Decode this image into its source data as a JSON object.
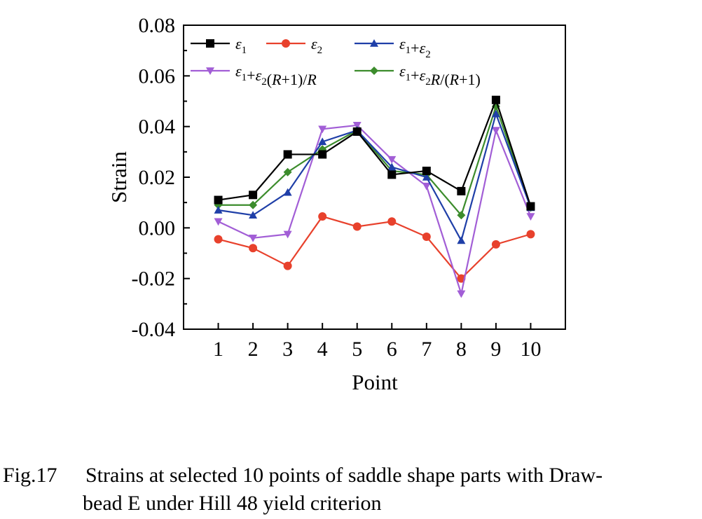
{
  "chart_data": {
    "type": "line",
    "x": [
      1,
      2,
      3,
      4,
      5,
      6,
      7,
      8,
      9,
      10
    ],
    "xlabel": "Point",
    "ylabel": "Strain",
    "xlim": [
      0,
      11
    ],
    "ylim": [
      -0.04,
      0.08
    ],
    "x_ticks": [
      "1",
      "2",
      "3",
      "4",
      "5",
      "6",
      "7",
      "8",
      "9",
      "10"
    ],
    "y_ticks": [
      "0.08",
      "0.06",
      "0.04",
      "0.02",
      "0.00",
      "-0.02",
      "-0.04"
    ],
    "y_tick_values": [
      0.08,
      0.06,
      0.04,
      0.02,
      0.0,
      -0.02,
      -0.04
    ],
    "grid": false,
    "legend_position": "top",
    "series": [
      {
        "name": "ε1",
        "color": "#000000",
        "marker": "square",
        "values": [
          0.011,
          0.013,
          0.029,
          0.029,
          0.038,
          0.021,
          0.0225,
          0.0145,
          0.0505,
          0.0085
        ]
      },
      {
        "name": "ε2",
        "color": "#e8412c",
        "marker": "circle",
        "values": [
          -0.0045,
          -0.008,
          -0.015,
          0.0045,
          0.0005,
          0.0025,
          -0.0035,
          -0.02,
          -0.0065,
          -0.0025
        ]
      },
      {
        "name": "ε1+ε2",
        "color": "#1f3fa8",
        "marker": "triangle-up",
        "values": [
          0.007,
          0.005,
          0.014,
          0.034,
          0.0385,
          0.024,
          0.02,
          -0.005,
          0.045,
          0.008
        ]
      },
      {
        "name": "ε1+ε2(R+1)/R",
        "color": "#a25ed6",
        "marker": "triangle-down",
        "values": [
          0.0025,
          -0.004,
          -0.0025,
          0.039,
          0.0405,
          0.027,
          0.0165,
          -0.026,
          0.0385,
          0.0045
        ]
      },
      {
        "name": "ε1+ε2R/(R+1)",
        "color": "#3c8c2c",
        "marker": "diamond",
        "values": [
          0.009,
          0.009,
          0.022,
          0.031,
          0.0385,
          0.0225,
          0.021,
          0.005,
          0.048,
          0.008
        ]
      }
    ]
  },
  "caption": {
    "number": "Fig.17",
    "line1": "Strains at selected 10 points of saddle shape parts with Draw-",
    "line2": "bead E under Hill 48 yield criterion"
  }
}
